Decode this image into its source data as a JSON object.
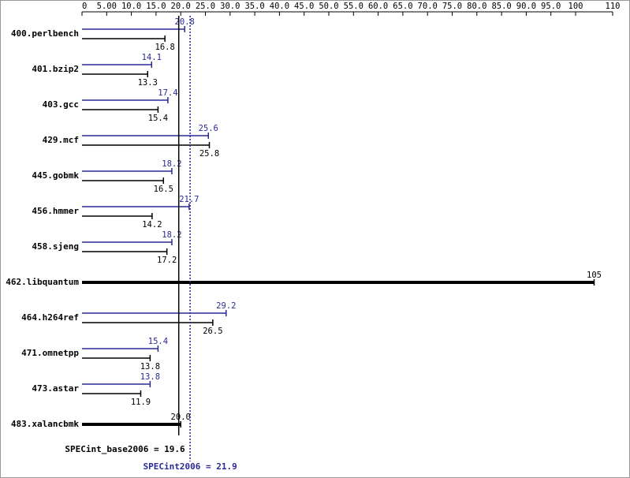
{
  "chart_data": {
    "type": "bar",
    "categories": [
      "400.perlbench",
      "401.bzip2",
      "403.gcc",
      "429.mcf",
      "445.gobmk",
      "456.hmmer",
      "458.sjeng",
      "462.libquantum",
      "464.h264ref",
      "471.omnetpp",
      "473.astar",
      "483.xalancbmk"
    ],
    "series": [
      {
        "name": "SPECint2006",
        "color": "#2a2a96",
        "values": [
          20.8,
          14.1,
          17.4,
          25.6,
          18.2,
          21.7,
          18.2,
          null,
          29.2,
          15.4,
          13.8,
          null
        ]
      },
      {
        "name": "SPECint_base2006",
        "color": "#000000",
        "values": [
          16.8,
          13.3,
          15.4,
          25.8,
          16.5,
          14.2,
          17.2,
          105,
          26.5,
          13.8,
          11.9,
          20.0
        ],
        "value_labels": [
          "16.8",
          "13.3",
          "15.4",
          "25.8",
          "16.5",
          "14.2",
          "17.2",
          "105",
          "26.5",
          "13.8",
          "11.9",
          "20.0"
        ]
      }
    ],
    "xlim": [
      0,
      110
    ],
    "xticks": [
      0,
      {
        "value": 5,
        "label": "5.00"
      },
      {
        "value": 10,
        "label": "10.0"
      },
      {
        "value": 15,
        "label": "15.0"
      },
      {
        "value": 20,
        "label": "20.0"
      },
      {
        "value": 25,
        "label": "25.0"
      },
      {
        "value": 30,
        "label": "30.0"
      },
      {
        "value": 35,
        "label": "35.0"
      },
      {
        "value": 40,
        "label": "40.0"
      },
      {
        "value": 45,
        "label": "45.0"
      },
      {
        "value": 50,
        "label": "50.0"
      },
      {
        "value": 55,
        "label": "55.0"
      },
      {
        "value": 60,
        "label": "60.0"
      },
      {
        "value": 65,
        "label": "65.0"
      },
      {
        "value": 70,
        "label": "70.0"
      },
      {
        "value": 75,
        "label": "75.0"
      },
      {
        "value": 80,
        "label": "80.0"
      },
      {
        "value": 85,
        "label": "85.0"
      },
      {
        "value": 90,
        "label": "90.0"
      },
      {
        "value": 95,
        "label": "95.0"
      },
      100,
      110
    ],
    "base_mean": {
      "value": 19.6,
      "label": "SPECint_base2006 = 19.6"
    },
    "peak_mean": {
      "value": 21.9,
      "label": "SPECint2006 = 21.9"
    }
  }
}
